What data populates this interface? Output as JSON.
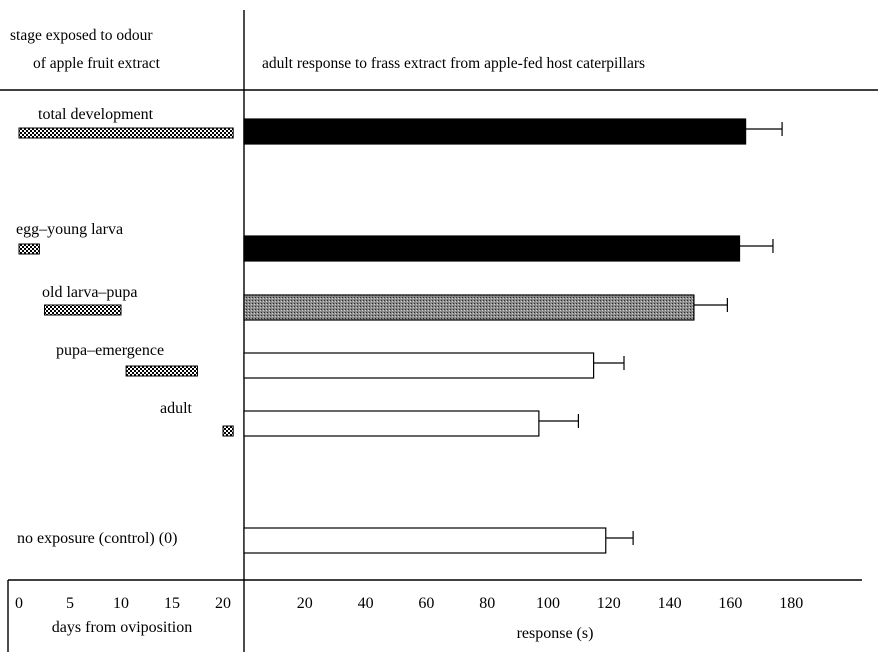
{
  "chart_data": {
    "type": "bar",
    "orientation": "horizontal",
    "left_panel": {
      "header": [
        "stage exposed to odour",
        "of apple fruit extract"
      ],
      "xlabel": "days from oviposition",
      "xlim": [
        0,
        21
      ],
      "ticks": [
        0,
        5,
        10,
        15,
        20
      ]
    },
    "right_panel": {
      "header": "adult response to frass extract from apple-fed host caterpillars",
      "xlabel": "response (s)",
      "xlim": [
        0,
        200
      ],
      "ticks": [
        20,
        40,
        60,
        80,
        100,
        120,
        140,
        160,
        180
      ]
    },
    "groups": [
      {
        "label": "total development",
        "exposure_days": [
          0,
          21
        ],
        "response": 165,
        "error": 12,
        "fill": "black"
      },
      {
        "label": "egg–young larva",
        "exposure_days": [
          0,
          2
        ],
        "response": 163,
        "error": 11,
        "fill": "black"
      },
      {
        "label": "old larva–pupa",
        "exposure_days": [
          2.5,
          10
        ],
        "response": 148,
        "error": 11,
        "fill": "grey"
      },
      {
        "label": "pupa–emergence",
        "exposure_days": [
          10.5,
          17.5
        ],
        "response": 115,
        "error": 10,
        "fill": "white"
      },
      {
        "label": "adult",
        "exposure_days": [
          20,
          21
        ],
        "response": 97,
        "error": 13,
        "fill": "white"
      },
      {
        "label": "no exposure (control) (0)",
        "exposure_days": null,
        "response": 119,
        "error": 9,
        "fill": "white"
      }
    ]
  }
}
